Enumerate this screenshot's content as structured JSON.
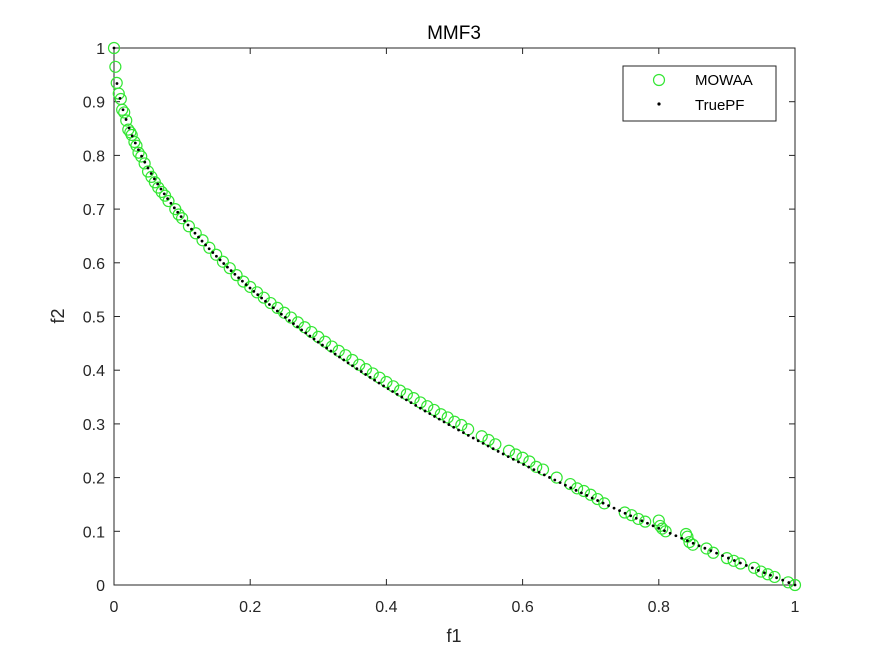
{
  "chart_data": {
    "type": "scatter",
    "title": "MMF3",
    "xlabel": "f1",
    "ylabel": "f2",
    "xlim": [
      0,
      1
    ],
    "ylim": [
      0,
      1
    ],
    "xticks": [
      0,
      0.2,
      0.4,
      0.6,
      0.8,
      1
    ],
    "xtick_labels": [
      "0",
      "0.2",
      "0.4",
      "0.6",
      "0.8",
      "1"
    ],
    "yticks": [
      0,
      0.1,
      0.2,
      0.3,
      0.4,
      0.5,
      0.6,
      0.7,
      0.8,
      0.9,
      1
    ],
    "ytick_labels": [
      "0",
      "0.1",
      "0.2",
      "0.3",
      "0.4",
      "0.5",
      "0.6",
      "0.7",
      "0.8",
      "0.9",
      "1"
    ],
    "grid": false,
    "legend_position": "top-right",
    "series": [
      {
        "name": "MOWAA",
        "marker": "circle-open",
        "color": "#33e633",
        "x": [
          0.0,
          0.002,
          0.004,
          0.007,
          0.01,
          0.012,
          0.015,
          0.018,
          0.021,
          0.024,
          0.026,
          0.03,
          0.033,
          0.036,
          0.04,
          0.045,
          0.05,
          0.055,
          0.06,
          0.065,
          0.07,
          0.075,
          0.08,
          0.09,
          0.095,
          0.1,
          0.11,
          0.12,
          0.13,
          0.14,
          0.15,
          0.16,
          0.17,
          0.18,
          0.19,
          0.2,
          0.21,
          0.22,
          0.23,
          0.24,
          0.25,
          0.26,
          0.27,
          0.28,
          0.29,
          0.3,
          0.31,
          0.32,
          0.33,
          0.34,
          0.35,
          0.36,
          0.37,
          0.38,
          0.39,
          0.4,
          0.41,
          0.42,
          0.43,
          0.44,
          0.45,
          0.46,
          0.47,
          0.48,
          0.49,
          0.5,
          0.51,
          0.52,
          0.54,
          0.55,
          0.56,
          0.58,
          0.59,
          0.6,
          0.61,
          0.62,
          0.63,
          0.65,
          0.67,
          0.68,
          0.69,
          0.7,
          0.71,
          0.72,
          0.75,
          0.76,
          0.77,
          0.78,
          0.8,
          0.802,
          0.805,
          0.81,
          0.84,
          0.842,
          0.845,
          0.85,
          0.87,
          0.88,
          0.9,
          0.91,
          0.92,
          0.94,
          0.95,
          0.96,
          0.97,
          0.99,
          1.0
        ],
        "y": [
          1.0,
          0.965,
          0.935,
          0.915,
          0.905,
          0.885,
          0.88,
          0.865,
          0.848,
          0.843,
          0.838,
          0.825,
          0.818,
          0.805,
          0.798,
          0.785,
          0.77,
          0.76,
          0.75,
          0.74,
          0.732,
          0.725,
          0.715,
          0.7,
          0.69,
          0.683,
          0.668,
          0.655,
          0.642,
          0.628,
          0.615,
          0.602,
          0.59,
          0.577,
          0.565,
          0.555,
          0.545,
          0.535,
          0.525,
          0.516,
          0.507,
          0.498,
          0.489,
          0.48,
          0.471,
          0.462,
          0.453,
          0.444,
          0.436,
          0.428,
          0.419,
          0.41,
          0.402,
          0.394,
          0.386,
          0.378,
          0.37,
          0.362,
          0.355,
          0.348,
          0.34,
          0.333,
          0.326,
          0.318,
          0.312,
          0.304,
          0.298,
          0.29,
          0.277,
          0.27,
          0.262,
          0.25,
          0.243,
          0.237,
          0.23,
          0.22,
          0.215,
          0.2,
          0.188,
          0.18,
          0.175,
          0.168,
          0.16,
          0.152,
          0.135,
          0.13,
          0.123,
          0.118,
          0.12,
          0.11,
          0.105,
          0.1,
          0.095,
          0.09,
          0.08,
          0.075,
          0.068,
          0.06,
          0.05,
          0.045,
          0.04,
          0.032,
          0.025,
          0.02,
          0.015,
          0.005,
          0.0
        ]
      },
      {
        "name": "TruePF",
        "marker": "dot",
        "color": "#000000",
        "curve": "f2 = 1 - sqrt(f1)",
        "x_range": [
          0,
          1
        ],
        "points": 150
      }
    ]
  }
}
